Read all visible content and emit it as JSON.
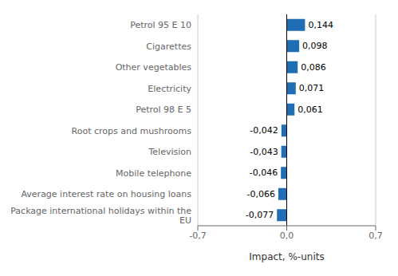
{
  "chart_data": {
    "type": "bar",
    "orientation": "horizontal",
    "categories": [
      "Package international holidays within the\nEU",
      "Average interest rate on housing loans",
      "Mobile telephone",
      "Television",
      "Root crops and mushrooms",
      "Petrol 98 E 5",
      "Electricity",
      "Other vegetables",
      "Cigarettes",
      "Petrol 95 E 10"
    ],
    "values": [
      -0.077,
      -0.066,
      -0.046,
      -0.043,
      -0.042,
      0.061,
      0.071,
      0.086,
      0.098,
      0.144
    ],
    "value_labels": [
      "-0,077",
      "-0,066",
      "-0,046",
      "-0,043",
      "-0,042",
      "0,061",
      "0,071",
      "0,086",
      "0,098",
      "0,144"
    ],
    "data_labels": true,
    "color": "#1F6EB5",
    "xlabel": "Impact, %-units",
    "xlim": [
      -0.7,
      0.7
    ],
    "xticks": [
      {
        "value": -0.7,
        "label": "-0,7"
      },
      {
        "value": 0,
        "label": "0,0"
      },
      {
        "value": 0.7,
        "label": "0,7"
      }
    ],
    "grid": true
  }
}
